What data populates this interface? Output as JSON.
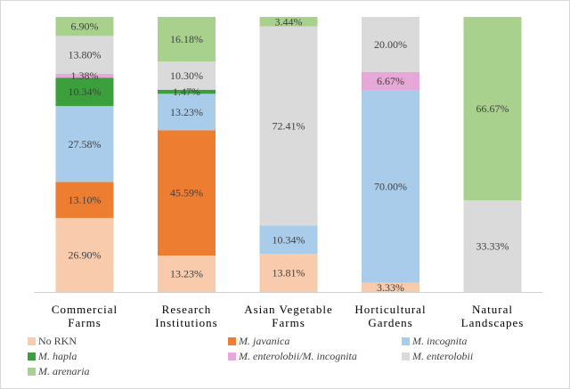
{
  "chart_data": {
    "type": "bar",
    "stacked": true,
    "normalized": true,
    "title": "",
    "xlabel": "",
    "ylabel": "",
    "ylim": [
      0,
      100
    ],
    "grid": false,
    "legend_position": "bottom",
    "categories": [
      [
        "Commercial",
        "Farms"
      ],
      [
        "Research",
        "Institutions"
      ],
      [
        "Asian Vegetable",
        "Farms"
      ],
      [
        "Horticultural",
        "Gardens"
      ],
      [
        "Natural",
        "Landscapes"
      ]
    ],
    "series": [
      {
        "name": "No RKN",
        "italic": false,
        "color": "#F8CBAD",
        "values": [
          26.9,
          13.23,
          13.81,
          3.33,
          0
        ],
        "labels": [
          "26.90%",
          "13.23%",
          "13.81%",
          "3.33%",
          ""
        ]
      },
      {
        "name": "M. javanica",
        "italic": true,
        "color": "#ED7D31",
        "values": [
          13.1,
          45.59,
          0,
          0,
          0
        ],
        "labels": [
          "13.10%",
          "45.59%",
          "",
          "",
          ""
        ]
      },
      {
        "name": "M. incognita",
        "italic": true,
        "color": "#A9CCEB",
        "values": [
          27.58,
          13.23,
          10.34,
          70.0,
          0
        ],
        "labels": [
          "27.58%",
          "13.23%",
          "10.34%",
          "70.00%",
          ""
        ]
      },
      {
        "name": "M. hapla",
        "italic": true,
        "color": "#3BA03B",
        "values": [
          10.34,
          1.47,
          0,
          0,
          0
        ],
        "labels": [
          "10.34%",
          "1.47%",
          "",
          "",
          ""
        ]
      },
      {
        "name": "M. enterolobii/M. incognita",
        "italic": true,
        "color": "#E6A8D7",
        "values": [
          1.38,
          0,
          0,
          6.67,
          0
        ],
        "labels": [
          "1.38%",
          "",
          "",
          "6.67%",
          ""
        ]
      },
      {
        "name": "M. enterolobii",
        "italic": true,
        "color": "#DADADA",
        "values": [
          13.8,
          10.3,
          72.41,
          20.0,
          33.33
        ],
        "labels": [
          "13.80%",
          "10.30%",
          "72.41%",
          "20.00%",
          "33.33%"
        ]
      },
      {
        "name": "M. arenaria",
        "italic": true,
        "color": "#A9D18E",
        "values": [
          6.9,
          16.18,
          3.44,
          0,
          66.67
        ],
        "labels": [
          "6.90%",
          "16.18%",
          "3.44%",
          "",
          "66.67%"
        ]
      }
    ]
  }
}
